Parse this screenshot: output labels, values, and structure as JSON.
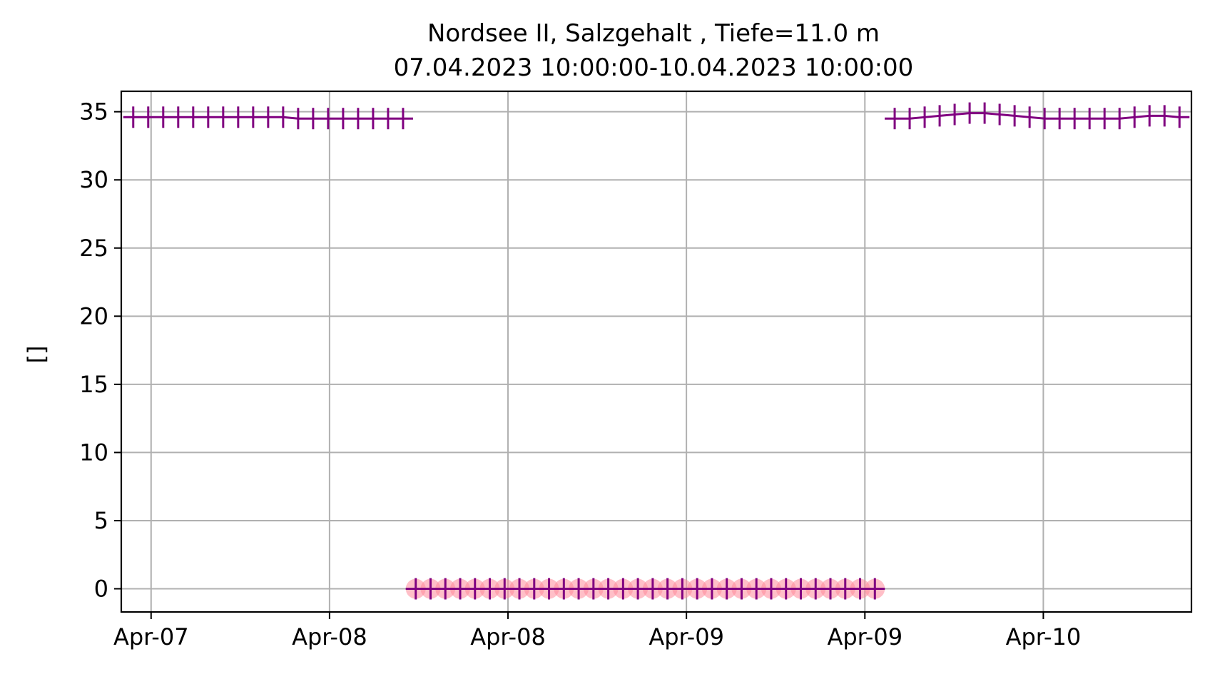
{
  "chart_data": {
    "type": "line",
    "title": "Nordsee II, Salzgehalt , Tiefe=11.0 m",
    "subtitle": "07.04.2023 10:00:00-10.04.2023 10:00:00",
    "xlabel": "",
    "ylabel": "[]",
    "xlim": [
      -0.167,
      5.83
    ],
    "ylim": [
      -1.7,
      36.5
    ],
    "grid": true,
    "x_ticks": [
      {
        "x": 0,
        "label": "Apr-07"
      },
      {
        "x": 1,
        "label": "Apr-08"
      },
      {
        "x": 2,
        "label": "Apr-08"
      },
      {
        "x": 3,
        "label": "Apr-09"
      },
      {
        "x": 4,
        "label": "Apr-09"
      },
      {
        "x": 5,
        "label": "Apr-10"
      }
    ],
    "y_ticks": [
      0,
      5,
      10,
      15,
      20,
      25,
      30,
      35
    ],
    "series": [
      {
        "color": "#800080",
        "marker": "+",
        "x": [
          -0.1,
          -0.016,
          0.068,
          0.152,
          0.236,
          0.32,
          0.404,
          0.488,
          0.572,
          0.656,
          0.74,
          0.824,
          0.908,
          0.992,
          1.076,
          1.16,
          1.244,
          1.328,
          1.412
        ],
        "y": [
          34.6,
          34.6,
          34.6,
          34.6,
          34.6,
          34.6,
          34.6,
          34.6,
          34.6,
          34.6,
          34.6,
          34.5,
          34.5,
          34.5,
          34.5,
          34.5,
          34.5,
          34.5,
          34.5
        ]
      },
      {
        "color": "#800080",
        "marker": "+",
        "flag_color": "#ff8a9a",
        "x": [
          1.483,
          1.566,
          1.649,
          1.732,
          1.815,
          1.898,
          1.981,
          2.064,
          2.147,
          2.23,
          2.313,
          2.396,
          2.479,
          2.562,
          2.645,
          2.728,
          2.811,
          2.894,
          2.977,
          3.06,
          3.143,
          3.226,
          3.309,
          3.392,
          3.475,
          3.558,
          3.641,
          3.724,
          3.807,
          3.89,
          3.973,
          4.056
        ],
        "y": [
          0,
          0,
          0,
          0,
          0,
          0,
          0,
          0,
          0,
          0,
          0,
          0,
          0,
          0,
          0,
          0,
          0,
          0,
          0,
          0,
          0,
          0,
          0,
          0,
          0,
          0,
          0,
          0,
          0,
          0,
          0,
          0
        ]
      },
      {
        "color": "#800080",
        "marker": "+",
        "x": [
          4.167,
          4.251,
          4.335,
          4.419,
          4.503,
          4.587,
          4.671,
          4.755,
          4.839,
          4.923,
          5.007,
          5.091,
          5.175,
          5.259,
          5.343,
          5.427,
          5.511,
          5.595,
          5.679,
          5.763
        ],
        "y": [
          34.5,
          34.5,
          34.6,
          34.7,
          34.8,
          34.9,
          34.9,
          34.8,
          34.7,
          34.6,
          34.5,
          34.5,
          34.5,
          34.5,
          34.5,
          34.5,
          34.6,
          34.7,
          34.7,
          34.6
        ]
      }
    ]
  }
}
